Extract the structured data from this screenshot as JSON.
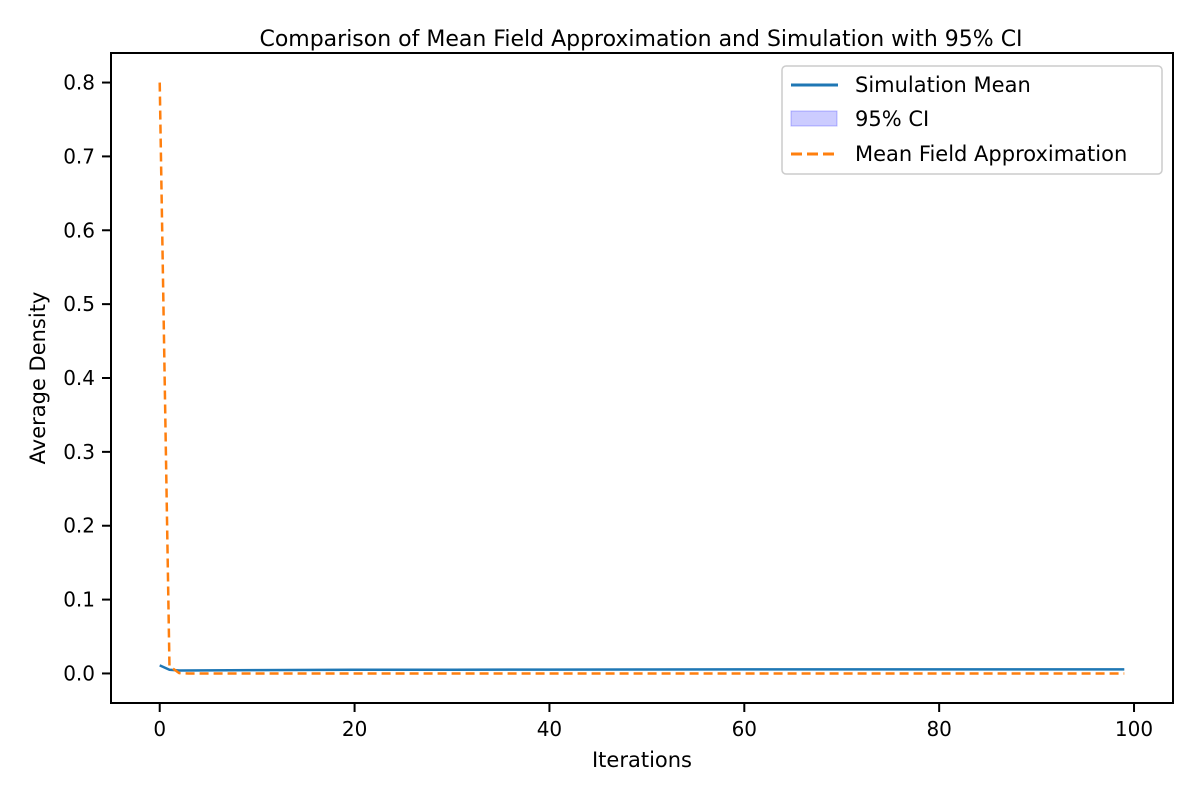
{
  "chart_data": {
    "type": "line",
    "title": "Comparison of Mean Field Approximation and Simulation with 95% CI",
    "xlabel": "Iterations",
    "ylabel": "Average Density",
    "xlim": [
      -5,
      104
    ],
    "ylim": [
      -0.04,
      0.84
    ],
    "xticks": [
      0,
      20,
      40,
      60,
      80,
      100
    ],
    "yticks": [
      0.0,
      0.1,
      0.2,
      0.3,
      0.4,
      0.5,
      0.6,
      0.7,
      0.8
    ],
    "xtick_labels": [
      "0",
      "20",
      "40",
      "60",
      "80",
      "100"
    ],
    "ytick_labels": [
      "0.0",
      "0.1",
      "0.2",
      "0.3",
      "0.4",
      "0.5",
      "0.6",
      "0.7",
      "0.8"
    ],
    "grid": false,
    "legend_position": "top-right",
    "series": [
      {
        "name": "Simulation Mean",
        "style": "solid",
        "color": "#1f77b4",
        "x": [
          0,
          1,
          2,
          10,
          20,
          30,
          40,
          50,
          60,
          70,
          80,
          90,
          99
        ],
        "y": [
          0.011,
          0.005,
          0.004,
          0.0045,
          0.005,
          0.005,
          0.0052,
          0.0054,
          0.0055,
          0.0055,
          0.0055,
          0.0055,
          0.0056
        ]
      },
      {
        "name": "95% CI",
        "style": "band",
        "color": "#0000ff",
        "x": [
          0,
          1,
          2,
          10,
          20,
          30,
          40,
          50,
          60,
          70,
          80,
          90,
          99
        ],
        "lower": [
          0.01,
          0.0045,
          0.0035,
          0.004,
          0.0045,
          0.0045,
          0.0047,
          0.0049,
          0.005,
          0.005,
          0.005,
          0.005,
          0.0051
        ],
        "upper": [
          0.012,
          0.0055,
          0.0045,
          0.005,
          0.0055,
          0.0055,
          0.0057,
          0.0059,
          0.006,
          0.006,
          0.006,
          0.006,
          0.0061
        ]
      },
      {
        "name": "Mean Field Approximation",
        "style": "dashed",
        "color": "#ff7f0e",
        "x": [
          0,
          1,
          2,
          3,
          99
        ],
        "y": [
          0.8,
          0.01,
          0.0005,
          0.0,
          0.0
        ]
      }
    ]
  }
}
